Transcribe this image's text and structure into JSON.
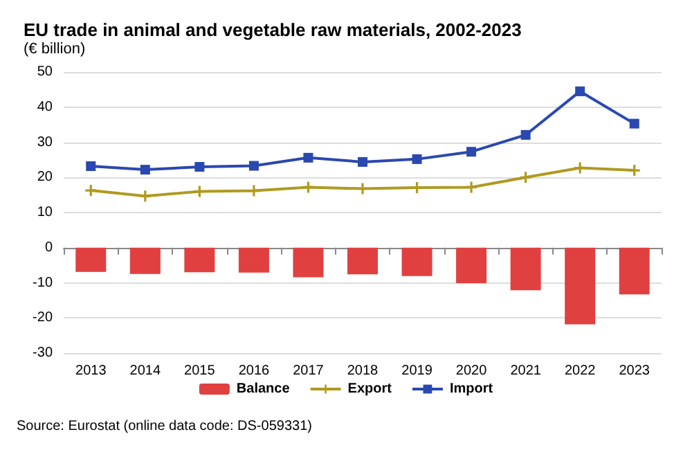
{
  "chart_data": {
    "type": "bar",
    "title": "EU trade in animal and vegetable raw materials, 2002-2023",
    "subtitle": "(€ billion)",
    "categories": [
      "2013",
      "2014",
      "2015",
      "2016",
      "2017",
      "2018",
      "2019",
      "2020",
      "2021",
      "2022",
      "2023"
    ],
    "series": [
      {
        "name": "Balance",
        "color": "#e04040",
        "values": [
          -6.9,
          -7.5,
          -7.0,
          -7.1,
          -8.4,
          -7.6,
          -8.1,
          -10.1,
          -12.1,
          -21.8,
          -13.3
        ]
      },
      {
        "name": "Export",
        "type": "line",
        "color": "#b09a20",
        "marker": "cross",
        "values": [
          16.3,
          14.7,
          16.0,
          16.2,
          17.2,
          16.8,
          17.1,
          17.2,
          20.0,
          22.7,
          22.0
        ]
      },
      {
        "name": "Import",
        "type": "line",
        "color": "#2a48b0",
        "marker": "square",
        "values": [
          23.2,
          22.2,
          23.0,
          23.3,
          25.6,
          24.4,
          25.2,
          27.3,
          32.1,
          44.5,
          35.3
        ]
      }
    ],
    "ylim": [
      -30,
      50
    ],
    "yticks": [
      -30,
      -20,
      -10,
      0,
      10,
      20,
      30,
      40,
      50
    ],
    "grid": "y",
    "legend": "bottom",
    "annotations": [
      "Source: Eurostat (online data code: DS-059331)"
    ]
  }
}
